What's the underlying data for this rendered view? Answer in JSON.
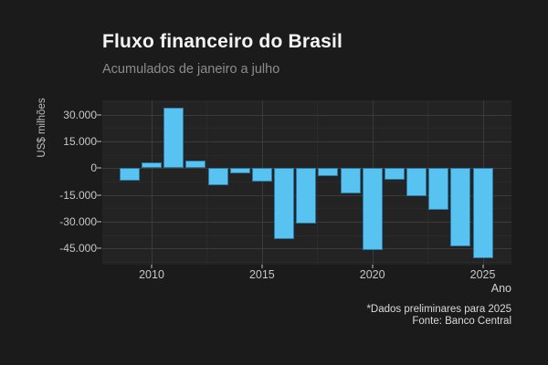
{
  "page": {
    "background": "#1b1b1b",
    "panel_background": "#232323"
  },
  "chart_data": {
    "type": "bar",
    "title": "Fluxo financeiro do Brasil",
    "subtitle": "Acumulados de janeiro a julho",
    "xlabel": "Ano",
    "ylabel": "US$ milhões",
    "caption_line1": "*Dados preliminares para 2025",
    "caption_line2": "Fonte: Banco Central",
    "categories": [
      2009,
      2010,
      2011,
      2012,
      2013,
      2014,
      2015,
      2016,
      2017,
      2018,
      2019,
      2020,
      2021,
      2022,
      2023,
      2024,
      2025
    ],
    "values": [
      -7000,
      3500,
      34000,
      4500,
      -9500,
      -3000,
      -7500,
      -39500,
      -31000,
      -4500,
      -14000,
      -46000,
      -6500,
      -15500,
      -23500,
      -44000,
      -50500
    ],
    "ylim": [
      -54000,
      38000
    ],
    "y_major_ticks": [
      30000,
      15000,
      0,
      -15000,
      -30000,
      -45000
    ],
    "y_tick_labels": [
      "30.000",
      "15.000",
      "0",
      "-15.000",
      "-30.000",
      "-45.000"
    ],
    "y_minor_ticks": [
      37500,
      22500,
      7500,
      -7500,
      -22500,
      -37500,
      -52500
    ],
    "x_major_ticks": [
      2010,
      2015,
      2020,
      2025
    ],
    "x_tick_labels": [
      "2010",
      "2015",
      "2020",
      "2025"
    ],
    "x_minor_ticks": [
      2012.5,
      2017.5,
      2022.5
    ],
    "grid": true,
    "legend": "none",
    "bar_color": "#58C2F0",
    "bar_border_color": "#2e79a4",
    "grid_major_color": "#3a3a3a",
    "grid_minor_color": "#2a2a2a"
  }
}
